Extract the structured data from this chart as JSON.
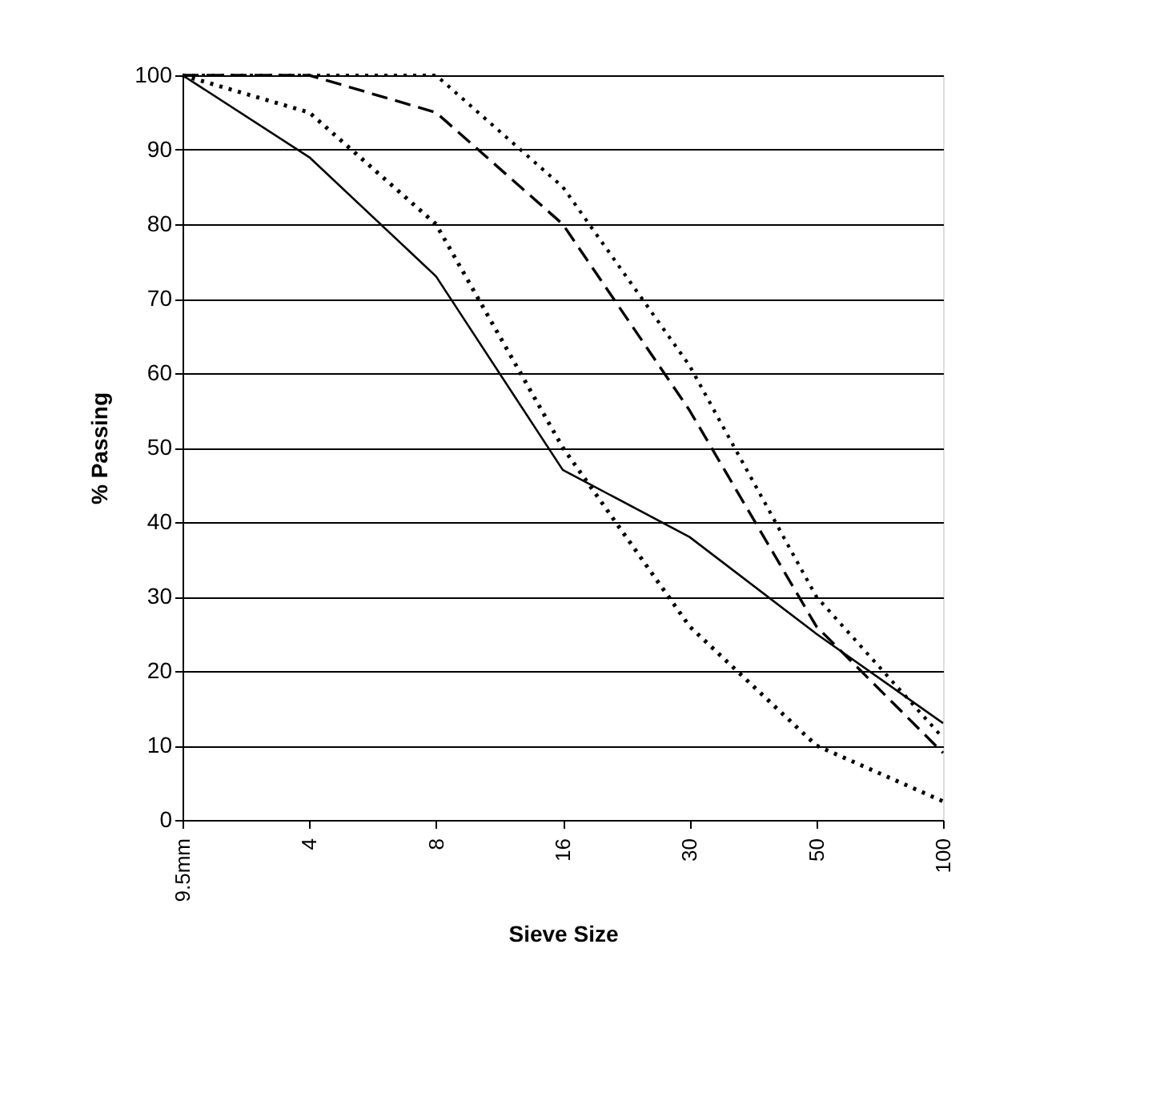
{
  "chart_data": {
    "type": "line",
    "xlabel": "Sieve Size",
    "ylabel": "% Passing",
    "categories": [
      "9.5mm",
      "4",
      "8",
      "16",
      "30",
      "50",
      "100"
    ],
    "series": [
      {
        "color": "#000000",
        "line_style": "solid",
        "values": [
          100,
          89,
          73,
          47,
          38,
          25,
          13
        ]
      },
      {
        "color": "#000000",
        "line_style": "dashed",
        "values": [
          100,
          100,
          95,
          80,
          55,
          26,
          9
        ]
      },
      {
        "color": "#000000",
        "line_style": "dotted",
        "values": [
          100,
          100,
          100,
          85,
          61,
          30,
          11
        ]
      },
      {
        "color": "#000000",
        "line_style": "dotted",
        "values": [
          100,
          95,
          80,
          50,
          26,
          10,
          2.5
        ]
      }
    ],
    "ylim": [
      0,
      100
    ],
    "yticks": [
      0,
      10,
      20,
      30,
      40,
      50,
      60,
      70,
      80,
      90,
      100
    ],
    "grid": "y",
    "legend": false,
    "marker": "none"
  }
}
